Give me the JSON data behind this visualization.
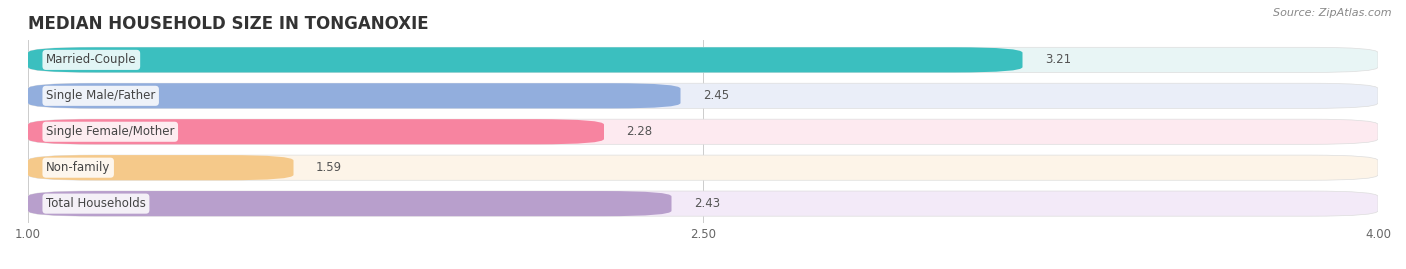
{
  "title": "MEDIAN HOUSEHOLD SIZE IN TONGANOXIE",
  "source": "Source: ZipAtlas.com",
  "categories": [
    "Married-Couple",
    "Single Male/Father",
    "Single Female/Mother",
    "Non-family",
    "Total Households"
  ],
  "values": [
    3.21,
    2.45,
    2.28,
    1.59,
    2.43
  ],
  "bar_colors": [
    "#3bbfbf",
    "#92aedd",
    "#f784a0",
    "#f5c98a",
    "#b89fcc"
  ],
  "bar_bg_colors": [
    "#e8f5f5",
    "#eaeef8",
    "#fdeaf0",
    "#fdf4e8",
    "#f3eaf8"
  ],
  "xlim": [
    1.0,
    4.0
  ],
  "xticks": [
    1.0,
    2.5,
    4.0
  ],
  "title_fontsize": 12,
  "label_fontsize": 8.5,
  "value_fontsize": 8.5,
  "source_fontsize": 8,
  "background_color": "#ffffff"
}
